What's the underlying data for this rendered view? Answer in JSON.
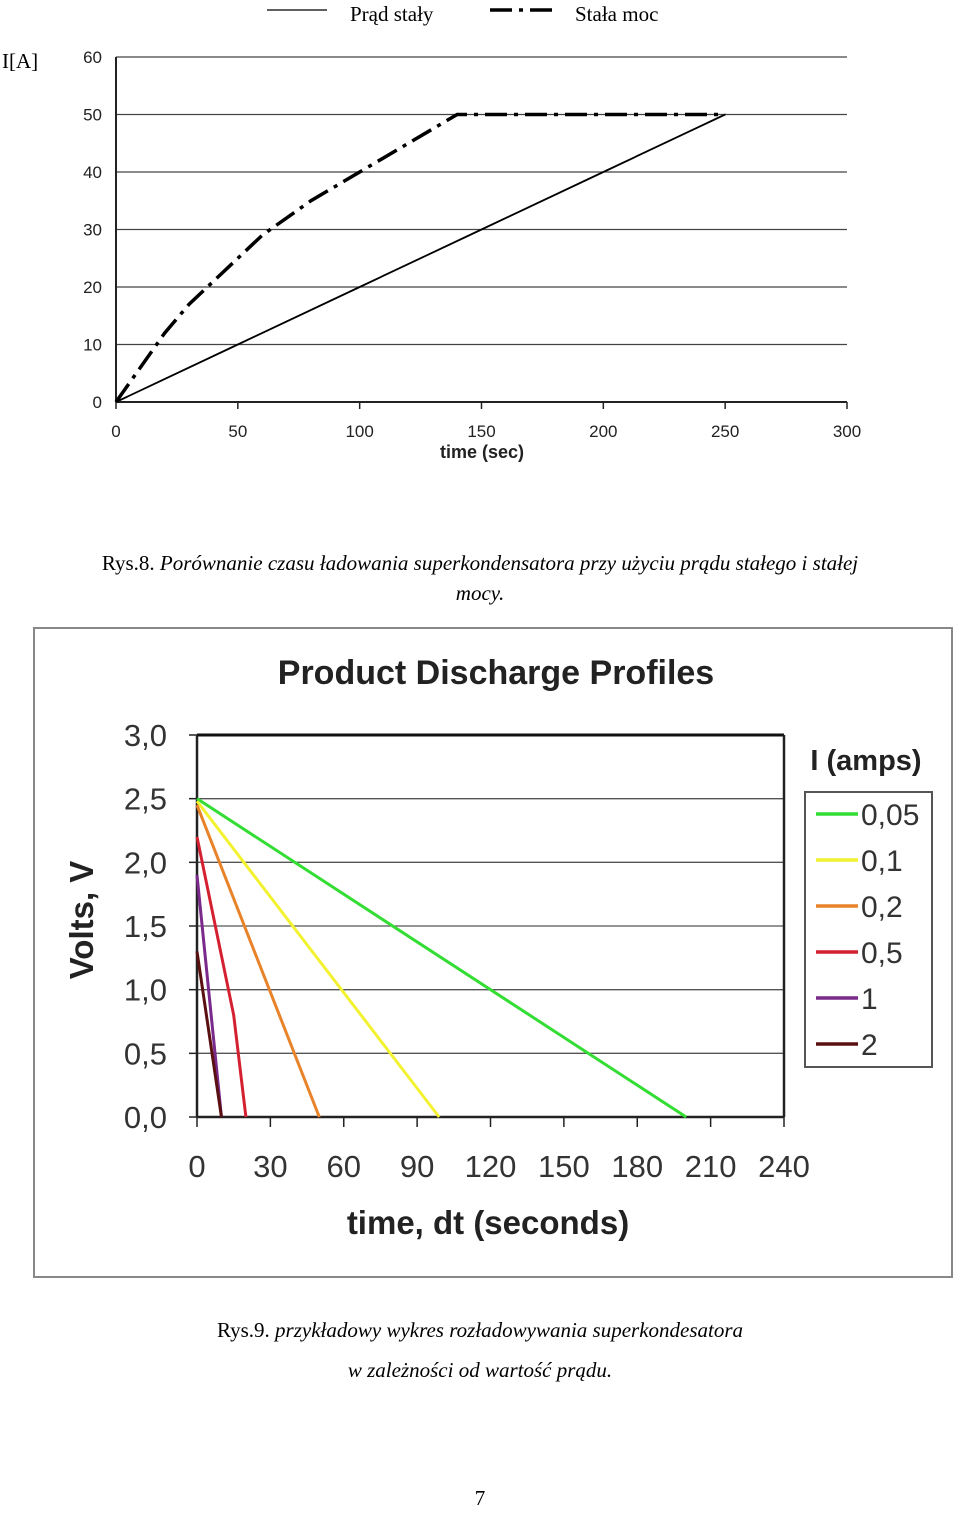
{
  "chart_data": [
    {
      "type": "line",
      "ylabel": "I[A]",
      "xlabel": "time (sec)",
      "xlim": [
        0,
        300
      ],
      "ylim": [
        0,
        60
      ],
      "x_ticks": [
        "0",
        "50",
        "100",
        "150",
        "200",
        "250",
        "300"
      ],
      "y_ticks": [
        "0",
        "10",
        "20",
        "30",
        "40",
        "50",
        "60"
      ],
      "grid": "horizontal",
      "legend_position": "top",
      "series": [
        {
          "name": "Prąd stały",
          "style": "solid",
          "color": "#000000",
          "points": [
            [
              0,
              0
            ],
            [
              50,
              10
            ],
            [
              100,
              20
            ],
            [
              150,
              30
            ],
            [
              200,
              40
            ],
            [
              250,
              50
            ]
          ]
        },
        {
          "name": "Stała moc",
          "style": "dashed",
          "color": "#000000",
          "points": [
            [
              0,
              0
            ],
            [
              10,
              6
            ],
            [
              20,
              12
            ],
            [
              30,
              17
            ],
            [
              40,
              21
            ],
            [
              60,
              29
            ],
            [
              80,
              35
            ],
            [
              100,
              40
            ],
            [
              120,
              45
            ],
            [
              140,
              50
            ],
            [
              250,
              50
            ]
          ]
        }
      ]
    },
    {
      "type": "line",
      "title": "Product Discharge Profiles",
      "ylabel": "Volts, V",
      "xlabel": "time, dt (seconds)",
      "xlim": [
        0,
        240
      ],
      "ylim": [
        0,
        3
      ],
      "x_ticks": [
        "0",
        "30",
        "60",
        "90",
        "120",
        "150",
        "180",
        "210",
        "240"
      ],
      "y_ticks": [
        "0,0",
        "0,5",
        "1,0",
        "1,5",
        "2,0",
        "2,5",
        "3,0"
      ],
      "grid": "horizontal",
      "legend_title": "I (amps)",
      "legend_position": "right",
      "series": [
        {
          "name": "0,05",
          "color": "#33dd33",
          "points": [
            [
              0,
              2.5
            ],
            [
              200,
              0
            ]
          ]
        },
        {
          "name": "0,1",
          "color": "#f2f230",
          "points": [
            [
              0,
              2.48
            ],
            [
              99,
              0
            ]
          ]
        },
        {
          "name": "0,2",
          "color": "#e8832a",
          "points": [
            [
              0,
              2.45
            ],
            [
              50,
              0
            ]
          ]
        },
        {
          "name": "0,5",
          "color": "#d42030",
          "points": [
            [
              0,
              2.2
            ],
            [
              15,
              0.8
            ],
            [
              20,
              0
            ]
          ]
        },
        {
          "name": "1",
          "color": "#7a2a8a",
          "points": [
            [
              0,
              1.9
            ],
            [
              10,
              0
            ]
          ]
        },
        {
          "name": "2",
          "color": "#5a1010",
          "points": [
            [
              0,
              1.3
            ],
            [
              10,
              0
            ]
          ]
        }
      ]
    }
  ],
  "captions": {
    "fig8_number": "Rys.8.",
    "fig8_text_line1": "Porównanie czasu ładowania superkondensatora przy użyciu prądu stałego i stałej",
    "fig8_text_line2": "mocy.",
    "fig9_number": "Rys.9.",
    "fig9_text_line1": "przykładowy wykres rozładowywania superkondesatora",
    "fig9_text_line2": "w zależności od wartość prądu."
  },
  "page_number": "7"
}
